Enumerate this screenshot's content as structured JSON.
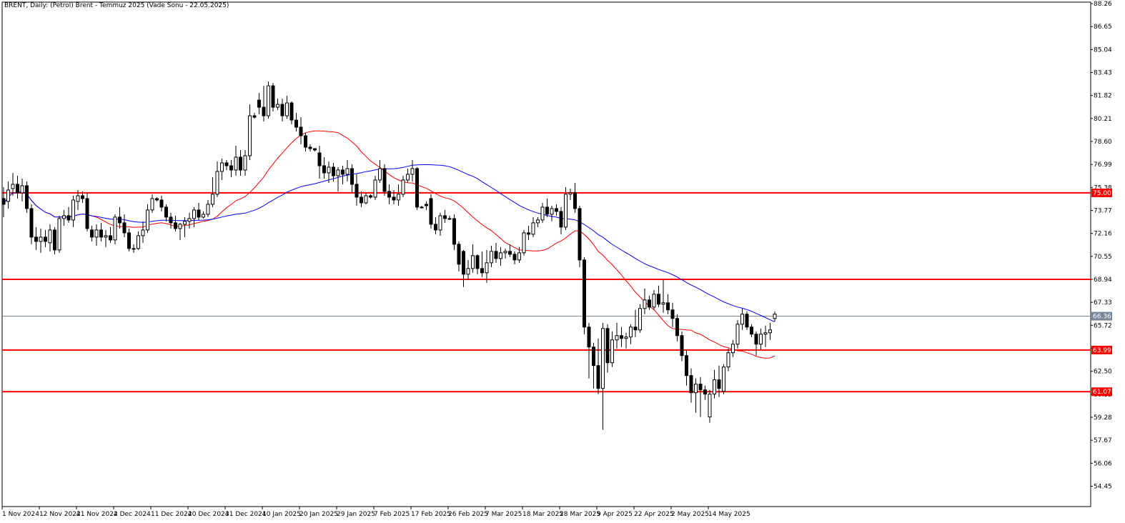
{
  "chart_data": {
    "type": "candlestick",
    "title": "BRENT, Daily:  (Petrol) Brent - Temmuz 2025 (Vade Sonu - 22.05.2025)",
    "ylim": [
      53.5,
      88.26
    ],
    "y_tick_labels": [
      "88.26",
      "86.65",
      "85.04",
      "83.43",
      "81.82",
      "80.21",
      "78.60",
      "76.99",
      "75.38",
      "73.77",
      "72.16",
      "70.55",
      "68.94",
      "67.33",
      "65.72",
      "64.11",
      "62.50",
      "60.89",
      "59.28",
      "57.67",
      "56.06",
      "54.45"
    ],
    "x_tick_labels": [
      "1 Nov 2024",
      "12 Nov 2024",
      "21 Nov 2024",
      "2 Dec 2024",
      "11 Dec 2024",
      "20 Dec 2024",
      "31 Dec 2024",
      "10 Jan 2025",
      "20 Jan 2025",
      "29 Jan 2025",
      "7 Feb 2025",
      "17 Feb 2025",
      "26 Feb 2025",
      "7 Mar 2025",
      "18 Mar 2025",
      "28 Mar 2025",
      "9 Apr 2025",
      "22 Apr 2025",
      "2 May 2025",
      "14 May 2025"
    ],
    "horizontal_levels": [
      {
        "value": 75.0,
        "color": "#ff0000",
        "label": "75.00"
      },
      {
        "value": 68.94,
        "color": "#ff0000",
        "label": ""
      },
      {
        "value": 63.99,
        "color": "#ff0000",
        "label": "63.99"
      },
      {
        "value": 61.07,
        "color": "#ff0000",
        "label": "61.07"
      }
    ],
    "current_price": {
      "value": 66.36,
      "label": "66.36",
      "color": "#778899"
    },
    "candles": [
      {
        "o": 74.6,
        "h": 75.4,
        "l": 73.3,
        "c": 74.2
      },
      {
        "o": 74.4,
        "h": 75.8,
        "l": 73.9,
        "c": 75.2
      },
      {
        "o": 75.3,
        "h": 76.4,
        "l": 74.8,
        "c": 75.6
      },
      {
        "o": 75.6,
        "h": 76.2,
        "l": 74.6,
        "c": 75.0
      },
      {
        "o": 75.0,
        "h": 76.0,
        "l": 74.4,
        "c": 75.5
      },
      {
        "o": 75.5,
        "h": 75.8,
        "l": 73.6,
        "c": 73.9
      },
      {
        "o": 73.9,
        "h": 74.2,
        "l": 71.4,
        "c": 71.9
      },
      {
        "o": 71.9,
        "h": 72.6,
        "l": 71.0,
        "c": 71.6
      },
      {
        "o": 71.6,
        "h": 72.5,
        "l": 70.8,
        "c": 71.9
      },
      {
        "o": 71.9,
        "h": 72.4,
        "l": 71.2,
        "c": 71.6
      },
      {
        "o": 71.5,
        "h": 72.8,
        "l": 70.9,
        "c": 72.4
      },
      {
        "o": 72.4,
        "h": 72.6,
        "l": 70.7,
        "c": 71.0
      },
      {
        "o": 71.0,
        "h": 73.4,
        "l": 70.8,
        "c": 73.2
      },
      {
        "o": 73.2,
        "h": 73.8,
        "l": 72.7,
        "c": 73.4
      },
      {
        "o": 73.4,
        "h": 74.0,
        "l": 72.9,
        "c": 73.1
      },
      {
        "o": 73.1,
        "h": 74.8,
        "l": 72.6,
        "c": 74.5
      },
      {
        "o": 74.4,
        "h": 75.2,
        "l": 73.8,
        "c": 74.8
      },
      {
        "o": 74.8,
        "h": 75.1,
        "l": 74.3,
        "c": 74.6
      },
      {
        "o": 74.6,
        "h": 75.0,
        "l": 72.3,
        "c": 72.5
      },
      {
        "o": 72.4,
        "h": 72.7,
        "l": 71.6,
        "c": 71.9
      },
      {
        "o": 71.9,
        "h": 72.8,
        "l": 71.3,
        "c": 72.4
      },
      {
        "o": 72.4,
        "h": 72.9,
        "l": 71.6,
        "c": 71.9
      },
      {
        "o": 71.9,
        "h": 72.4,
        "l": 71.2,
        "c": 72.0
      },
      {
        "o": 72.0,
        "h": 72.6,
        "l": 71.5,
        "c": 71.7
      },
      {
        "o": 71.7,
        "h": 73.5,
        "l": 71.4,
        "c": 73.3
      },
      {
        "o": 73.3,
        "h": 74.0,
        "l": 72.5,
        "c": 72.9
      },
      {
        "o": 72.9,
        "h": 73.5,
        "l": 71.9,
        "c": 72.2
      },
      {
        "o": 72.2,
        "h": 72.5,
        "l": 70.9,
        "c": 71.1
      },
      {
        "o": 71.1,
        "h": 71.4,
        "l": 70.8,
        "c": 71.1
      },
      {
        "o": 71.1,
        "h": 72.3,
        "l": 71.0,
        "c": 72.0
      },
      {
        "o": 72.0,
        "h": 73.0,
        "l": 71.5,
        "c": 72.4
      },
      {
        "o": 72.4,
        "h": 74.2,
        "l": 72.2,
        "c": 73.8
      },
      {
        "o": 73.8,
        "h": 74.9,
        "l": 73.6,
        "c": 74.6
      },
      {
        "o": 74.6,
        "h": 74.7,
        "l": 74.4,
        "c": 74.5
      },
      {
        "o": 74.5,
        "h": 74.8,
        "l": 73.7,
        "c": 74.0
      },
      {
        "o": 74.0,
        "h": 74.2,
        "l": 73.0,
        "c": 73.3
      },
      {
        "o": 73.3,
        "h": 73.6,
        "l": 72.5,
        "c": 72.9
      },
      {
        "o": 72.9,
        "h": 73.4,
        "l": 72.3,
        "c": 72.5
      },
      {
        "o": 72.5,
        "h": 72.9,
        "l": 71.7,
        "c": 72.8
      },
      {
        "o": 72.8,
        "h": 73.3,
        "l": 71.9,
        "c": 73.0
      },
      {
        "o": 73.0,
        "h": 73.6,
        "l": 72.5,
        "c": 73.2
      },
      {
        "o": 73.2,
        "h": 74.0,
        "l": 72.6,
        "c": 73.8
      },
      {
        "o": 73.8,
        "h": 74.3,
        "l": 73.1,
        "c": 73.3
      },
      {
        "o": 73.3,
        "h": 73.7,
        "l": 73.2,
        "c": 73.5
      },
      {
        "o": 73.5,
        "h": 74.5,
        "l": 73.3,
        "c": 74.2
      },
      {
        "o": 74.2,
        "h": 76.1,
        "l": 74.0,
        "c": 74.9
      },
      {
        "o": 74.9,
        "h": 77.2,
        "l": 74.7,
        "c": 76.5
      },
      {
        "o": 76.5,
        "h": 77.4,
        "l": 75.9,
        "c": 77.1
      },
      {
        "o": 77.1,
        "h": 77.3,
        "l": 76.6,
        "c": 76.9
      },
      {
        "o": 76.9,
        "h": 77.3,
        "l": 76.1,
        "c": 76.6
      },
      {
        "o": 76.6,
        "h": 78.3,
        "l": 76.2,
        "c": 77.5
      },
      {
        "o": 77.5,
        "h": 78.0,
        "l": 76.2,
        "c": 76.6
      },
      {
        "o": 76.6,
        "h": 78.0,
        "l": 76.2,
        "c": 77.6
      },
      {
        "o": 77.6,
        "h": 81.2,
        "l": 77.3,
        "c": 80.4
      },
      {
        "o": 80.4,
        "h": 80.6,
        "l": 80.2,
        "c": 80.3
      },
      {
        "o": 81.5,
        "h": 82.0,
        "l": 80.5,
        "c": 81.0
      },
      {
        "o": 81.0,
        "h": 82.5,
        "l": 80.0,
        "c": 80.4
      },
      {
        "o": 80.4,
        "h": 82.8,
        "l": 80.2,
        "c": 82.5
      },
      {
        "o": 82.5,
        "h": 82.7,
        "l": 80.7,
        "c": 81.0
      },
      {
        "o": 81.0,
        "h": 81.6,
        "l": 80.8,
        "c": 81.2
      },
      {
        "o": 81.2,
        "h": 81.6,
        "l": 80.0,
        "c": 80.4
      },
      {
        "o": 80.4,
        "h": 81.8,
        "l": 80.2,
        "c": 81.3
      },
      {
        "o": 81.3,
        "h": 81.4,
        "l": 79.8,
        "c": 80.1
      },
      {
        "o": 80.1,
        "h": 80.6,
        "l": 79.3,
        "c": 79.6
      },
      {
        "o": 79.6,
        "h": 80.3,
        "l": 78.4,
        "c": 79.0
      },
      {
        "o": 79.0,
        "h": 79.2,
        "l": 77.9,
        "c": 78.2
      },
      {
        "o": 78.2,
        "h": 78.4,
        "l": 77.9,
        "c": 78.1
      },
      {
        "o": 78.1,
        "h": 78.1,
        "l": 77.9,
        "c": 78.0
      },
      {
        "o": 77.8,
        "h": 78.3,
        "l": 76.0,
        "c": 76.9
      },
      {
        "o": 76.9,
        "h": 77.5,
        "l": 76.0,
        "c": 76.4
      },
      {
        "o": 76.4,
        "h": 77.2,
        "l": 75.7,
        "c": 76.8
      },
      {
        "o": 76.8,
        "h": 77.1,
        "l": 75.8,
        "c": 76.2
      },
      {
        "o": 76.2,
        "h": 76.8,
        "l": 75.1,
        "c": 76.6
      },
      {
        "o": 76.6,
        "h": 76.9,
        "l": 75.6,
        "c": 76.3
      },
      {
        "o": 76.3,
        "h": 77.3,
        "l": 75.8,
        "c": 76.7
      },
      {
        "o": 76.7,
        "h": 77.0,
        "l": 75.0,
        "c": 75.6
      },
      {
        "o": 75.6,
        "h": 76.3,
        "l": 74.1,
        "c": 74.7
      },
      {
        "o": 74.7,
        "h": 75.1,
        "l": 74.0,
        "c": 74.3
      },
      {
        "o": 74.3,
        "h": 75.0,
        "l": 74.2,
        "c": 74.8
      },
      {
        "o": 74.8,
        "h": 74.9,
        "l": 74.6,
        "c": 74.7
      },
      {
        "o": 74.7,
        "h": 76.2,
        "l": 74.5,
        "c": 75.9
      },
      {
        "o": 75.9,
        "h": 77.3,
        "l": 75.7,
        "c": 76.7
      },
      {
        "o": 76.7,
        "h": 77.0,
        "l": 74.8,
        "c": 75.1
      },
      {
        "o": 75.1,
        "h": 75.6,
        "l": 74.2,
        "c": 74.7
      },
      {
        "o": 74.7,
        "h": 75.2,
        "l": 74.2,
        "c": 74.5
      },
      {
        "o": 74.5,
        "h": 75.6,
        "l": 74.1,
        "c": 74.9
      },
      {
        "o": 74.9,
        "h": 76.2,
        "l": 74.7,
        "c": 75.9
      },
      {
        "o": 75.9,
        "h": 76.7,
        "l": 75.7,
        "c": 76.3
      },
      {
        "o": 76.3,
        "h": 77.3,
        "l": 75.8,
        "c": 76.7
      },
      {
        "o": 76.7,
        "h": 76.8,
        "l": 73.8,
        "c": 74.0
      },
      {
        "o": 74.0,
        "h": 74.1,
        "l": 73.9,
        "c": 74.0
      },
      {
        "o": 74.2,
        "h": 74.4,
        "l": 73.8,
        "c": 74.1
      },
      {
        "o": 74.6,
        "h": 74.9,
        "l": 72.5,
        "c": 72.8
      },
      {
        "o": 72.8,
        "h": 73.3,
        "l": 72.1,
        "c": 72.4
      },
      {
        "o": 72.4,
        "h": 73.6,
        "l": 72.0,
        "c": 73.4
      },
      {
        "o": 73.4,
        "h": 73.8,
        "l": 72.9,
        "c": 73.2
      },
      {
        "o": 73.2,
        "h": 73.4,
        "l": 73.1,
        "c": 73.2
      },
      {
        "o": 73.2,
        "h": 73.5,
        "l": 71.0,
        "c": 71.4
      },
      {
        "o": 71.4,
        "h": 71.6,
        "l": 69.5,
        "c": 70.0
      },
      {
        "o": 70.9,
        "h": 71.0,
        "l": 68.4,
        "c": 69.3
      },
      {
        "o": 69.3,
        "h": 70.3,
        "l": 68.9,
        "c": 69.7
      },
      {
        "o": 69.7,
        "h": 71.4,
        "l": 69.4,
        "c": 70.6
      },
      {
        "o": 70.6,
        "h": 70.7,
        "l": 69.3,
        "c": 69.7
      },
      {
        "o": 69.7,
        "h": 70.9,
        "l": 69.1,
        "c": 69.4
      },
      {
        "o": 69.4,
        "h": 71.0,
        "l": 68.7,
        "c": 70.1
      },
      {
        "o": 70.1,
        "h": 71.3,
        "l": 69.8,
        "c": 70.9
      },
      {
        "o": 70.9,
        "h": 71.5,
        "l": 70.1,
        "c": 70.4
      },
      {
        "o": 70.4,
        "h": 71.2,
        "l": 69.9,
        "c": 70.8
      },
      {
        "o": 70.8,
        "h": 71.1,
        "l": 70.4,
        "c": 70.9
      },
      {
        "o": 70.9,
        "h": 71.4,
        "l": 70.5,
        "c": 70.7
      },
      {
        "o": 70.7,
        "h": 70.9,
        "l": 70.0,
        "c": 70.3
      },
      {
        "o": 70.3,
        "h": 71.2,
        "l": 70.1,
        "c": 70.8
      },
      {
        "o": 70.8,
        "h": 72.4,
        "l": 70.6,
        "c": 72.2
      },
      {
        "o": 72.2,
        "h": 72.7,
        "l": 71.7,
        "c": 72.1
      },
      {
        "o": 72.1,
        "h": 73.3,
        "l": 71.9,
        "c": 72.9
      },
      {
        "o": 72.9,
        "h": 73.3,
        "l": 72.6,
        "c": 73.1
      },
      {
        "o": 73.1,
        "h": 74.3,
        "l": 72.9,
        "c": 74.0
      },
      {
        "o": 74.0,
        "h": 74.6,
        "l": 73.3,
        "c": 73.5
      },
      {
        "o": 73.5,
        "h": 74.1,
        "l": 73.0,
        "c": 73.9
      },
      {
        "o": 73.9,
        "h": 74.2,
        "l": 73.4,
        "c": 73.7
      },
      {
        "o": 73.7,
        "h": 74.0,
        "l": 72.1,
        "c": 72.6
      },
      {
        "o": 72.6,
        "h": 75.4,
        "l": 72.4,
        "c": 74.9
      },
      {
        "o": 74.9,
        "h": 75.3,
        "l": 74.5,
        "c": 75.0
      },
      {
        "o": 75.0,
        "h": 75.7,
        "l": 73.6,
        "c": 73.9
      },
      {
        "o": 73.9,
        "h": 74.1,
        "l": 69.8,
        "c": 70.3
      },
      {
        "o": 70.3,
        "h": 70.5,
        "l": 65.1,
        "c": 65.6
      },
      {
        "o": 65.6,
        "h": 65.9,
        "l": 62.0,
        "c": 64.2
      },
      {
        "o": 64.2,
        "h": 64.5,
        "l": 61.3,
        "c": 62.9
      },
      {
        "o": 62.9,
        "h": 64.8,
        "l": 60.9,
        "c": 61.3
      },
      {
        "o": 61.3,
        "h": 65.9,
        "l": 58.4,
        "c": 65.5
      },
      {
        "o": 65.5,
        "h": 65.8,
        "l": 62.4,
        "c": 63.1
      },
      {
        "o": 63.1,
        "h": 65.3,
        "l": 62.8,
        "c": 64.7
      },
      {
        "o": 64.7,
        "h": 65.9,
        "l": 64.1,
        "c": 65.0
      },
      {
        "o": 65.0,
        "h": 65.6,
        "l": 64.2,
        "c": 64.8
      },
      {
        "o": 64.8,
        "h": 65.2,
        "l": 64.1,
        "c": 64.9
      },
      {
        "o": 64.9,
        "h": 65.8,
        "l": 64.4,
        "c": 65.6
      },
      {
        "o": 65.6,
        "h": 66.8,
        "l": 64.9,
        "c": 65.4
      },
      {
        "o": 65.4,
        "h": 67.2,
        "l": 65.2,
        "c": 66.9
      },
      {
        "o": 66.9,
        "h": 68.3,
        "l": 66.5,
        "c": 67.5
      },
      {
        "o": 67.5,
        "h": 67.8,
        "l": 66.8,
        "c": 67.0
      },
      {
        "o": 67.0,
        "h": 68.2,
        "l": 66.8,
        "c": 67.9
      },
      {
        "o": 67.9,
        "h": 68.5,
        "l": 67.0,
        "c": 67.2
      },
      {
        "o": 67.2,
        "h": 68.9,
        "l": 66.6,
        "c": 67.3
      },
      {
        "o": 67.3,
        "h": 67.9,
        "l": 66.5,
        "c": 66.8
      },
      {
        "o": 66.8,
        "h": 67.3,
        "l": 65.6,
        "c": 66.2
      },
      {
        "o": 66.2,
        "h": 66.5,
        "l": 64.6,
        "c": 65.0
      },
      {
        "o": 65.0,
        "h": 65.3,
        "l": 63.2,
        "c": 63.6
      },
      {
        "o": 63.6,
        "h": 64.0,
        "l": 61.5,
        "c": 62.2
      },
      {
        "o": 62.2,
        "h": 62.7,
        "l": 60.3,
        "c": 61.0
      },
      {
        "o": 61.0,
        "h": 62.0,
        "l": 59.6,
        "c": 61.6
      },
      {
        "o": 61.6,
        "h": 62.1,
        "l": 59.3,
        "c": 61.2
      },
      {
        "o": 61.2,
        "h": 61.5,
        "l": 60.5,
        "c": 60.9
      },
      {
        "o": 59.3,
        "h": 61.2,
        "l": 58.9,
        "c": 60.9
      },
      {
        "o": 60.9,
        "h": 62.6,
        "l": 60.6,
        "c": 61.9
      },
      {
        "o": 61.9,
        "h": 62.9,
        "l": 60.7,
        "c": 61.3
      },
      {
        "o": 61.1,
        "h": 63.0,
        "l": 60.9,
        "c": 62.8
      },
      {
        "o": 62.8,
        "h": 64.1,
        "l": 62.5,
        "c": 63.8
      },
      {
        "o": 63.8,
        "h": 64.7,
        "l": 63.5,
        "c": 64.4
      },
      {
        "o": 64.4,
        "h": 66.1,
        "l": 64.1,
        "c": 65.8
      },
      {
        "o": 65.8,
        "h": 66.9,
        "l": 65.4,
        "c": 66.5
      },
      {
        "o": 66.5,
        "h": 66.7,
        "l": 65.4,
        "c": 65.6
      },
      {
        "o": 65.6,
        "h": 65.8,
        "l": 64.9,
        "c": 65.1
      },
      {
        "o": 65.1,
        "h": 65.3,
        "l": 63.6,
        "c": 64.4
      },
      {
        "o": 64.4,
        "h": 65.5,
        "l": 64.0,
        "c": 65.1
      },
      {
        "o": 65.1,
        "h": 65.7,
        "l": 64.2,
        "c": 65.2
      },
      {
        "o": 65.2,
        "h": 65.9,
        "l": 64.7,
        "c": 65.4
      },
      {
        "o": 66.2,
        "h": 66.7,
        "l": 66.0,
        "c": 66.5
      }
    ]
  }
}
